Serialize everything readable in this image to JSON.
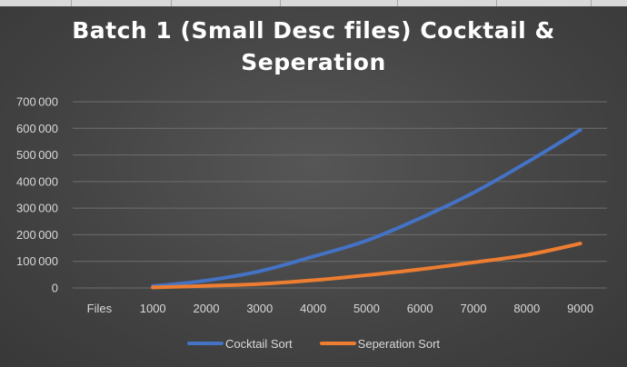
{
  "chart_data": {
    "type": "line",
    "title": "Batch 1 (Small Desc files) Cocktail & Seperation",
    "categories": [
      "Files",
      "1000",
      "2000",
      "3000",
      "4000",
      "5000",
      "6000",
      "7000",
      "8000",
      "9000"
    ],
    "yticks": [
      "0",
      "100000",
      "200000",
      "300000",
      "400000",
      "500000",
      "600000",
      "700000"
    ],
    "ylim": [
      0,
      700000
    ],
    "grid": true,
    "legend_position": "bottom",
    "series": [
      {
        "name": "Cocktail Sort",
        "color": "#4472c4",
        "values": [
          null,
          7000,
          28000,
          63000,
          118000,
          178000,
          262000,
          358000,
          472000,
          594000
        ]
      },
      {
        "name": "Seperation Sort",
        "color": "#ed7d31",
        "values": [
          null,
          2000,
          8000,
          15000,
          29000,
          48000,
          70000,
          96000,
          124000,
          167000
        ]
      }
    ]
  }
}
